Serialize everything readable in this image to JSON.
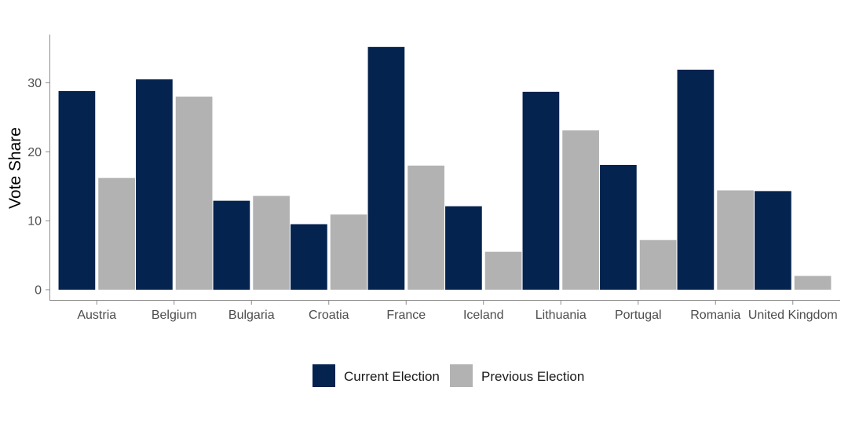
{
  "chart_data": {
    "type": "bar",
    "ylabel": "Vote Share",
    "xlabel": "",
    "ylim": [
      -1.6,
      37
    ],
    "yticks": [
      0,
      10,
      20,
      30
    ],
    "grid": false,
    "legend_position": "bottom",
    "categories": [
      "Austria",
      "Belgium",
      "Bulgaria",
      "Croatia",
      "France",
      "Iceland",
      "Lithuania",
      "Portugal",
      "Romania",
      "United Kingdom"
    ],
    "series": [
      {
        "name": "Current Election",
        "color": "#05234f",
        "values": [
          28.8,
          30.5,
          12.9,
          9.5,
          35.2,
          12.1,
          28.7,
          18.1,
          31.9,
          14.3
        ]
      },
      {
        "name": "Previous Election",
        "color": "#b2b2b2",
        "values": [
          16.2,
          28.0,
          13.6,
          10.9,
          18.0,
          5.5,
          23.1,
          7.2,
          14.4,
          2.0
        ]
      }
    ]
  }
}
